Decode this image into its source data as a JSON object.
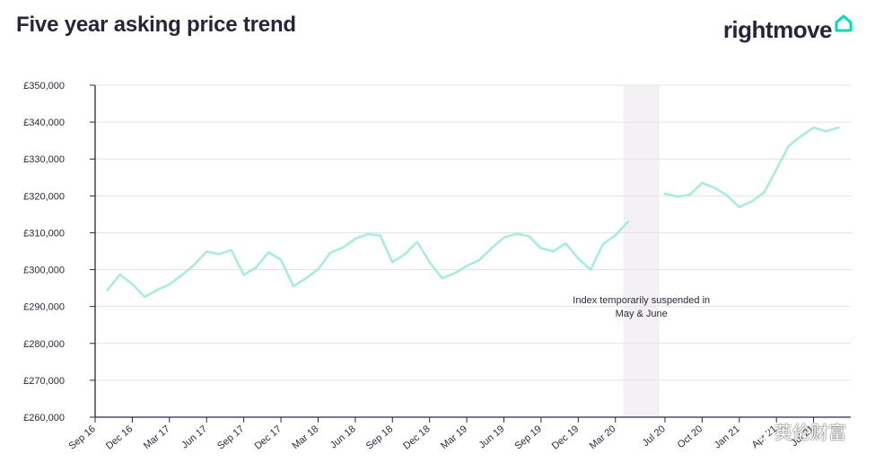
{
  "header": {
    "title": "Five year asking price trend"
  },
  "brand": {
    "name": "rightmove",
    "icon": "house-outline-icon",
    "accent": "#00deb6"
  },
  "watermark": {
    "text": "英伦财富",
    "icon": "wechat-icon"
  },
  "colors": {
    "line": "#a9ecdb",
    "grid": "#e3e3e6",
    "axis": "#2a2a3a",
    "text": "#2a2a3a",
    "shade": "#f3f1f3"
  },
  "chart_data": {
    "type": "line",
    "title": "Five year asking price trend",
    "xlabel": "",
    "ylabel": "",
    "ylim": [
      260000,
      350000
    ],
    "yticks": [
      260000,
      270000,
      280000,
      290000,
      300000,
      310000,
      320000,
      330000,
      340000,
      350000
    ],
    "ytick_labels": [
      "£260,000",
      "£270,000",
      "£280,000",
      "£290,000",
      "£300,000",
      "£310,000",
      "£320,000",
      "£330,000",
      "£340,000",
      "£350,000"
    ],
    "xtick_labels": [
      "Sep 16",
      "Dec 16",
      "Mar 17",
      "Jun 17",
      "Sep 17",
      "Dec 17",
      "Mar 18",
      "Jun 18",
      "Sep 18",
      "Dec 18",
      "Mar 19",
      "Jun 19",
      "Sep 19",
      "Dec 19",
      "Mar 20",
      "Jul 20",
      "Oct 20",
      "Jan 21",
      "Apr 21",
      "Jul 21"
    ],
    "xtick_dates": [
      "2016-09",
      "2016-12",
      "2017-03",
      "2017-06",
      "2017-09",
      "2017-12",
      "2018-03",
      "2018-06",
      "2018-09",
      "2018-12",
      "2019-03",
      "2019-06",
      "2019-09",
      "2019-12",
      "2020-03",
      "2020-07",
      "2020-10",
      "2021-01",
      "2021-04",
      "2021-07"
    ],
    "grid": true,
    "legend": "none",
    "shaded_period": {
      "from": "2020-04",
      "to": "2020-06",
      "label": "Index temporarily suspended in May & June"
    },
    "series": [
      {
        "segments": [
          {
            "x": [
              "2016-10",
              "2016-11",
              "2016-12",
              "2017-01",
              "2017-02",
              "2017-03",
              "2017-04",
              "2017-05",
              "2017-06",
              "2017-07",
              "2017-08",
              "2017-09",
              "2017-10",
              "2017-11",
              "2017-12",
              "2018-01",
              "2018-02",
              "2018-03",
              "2018-04",
              "2018-05",
              "2018-06",
              "2018-07",
              "2018-08",
              "2018-09",
              "2018-10",
              "2018-11",
              "2018-12",
              "2019-01",
              "2019-02",
              "2019-03",
              "2019-04",
              "2019-05",
              "2019-06",
              "2019-07",
              "2019-08",
              "2019-09",
              "2019-10",
              "2019-11",
              "2019-12",
              "2020-01",
              "2020-02",
              "2020-03",
              "2020-04"
            ],
            "y": [
              294500,
              298700,
              296100,
              292600,
              294500,
              296000,
              298500,
              301300,
              304900,
              304200,
              305300,
              298600,
              300600,
              304700,
              302700,
              295500,
              297600,
              300100,
              304600,
              306000,
              308400,
              309600,
              309300,
              302000,
              304200,
              307500,
              302000,
              297700,
              299000,
              301000,
              302600,
              305800,
              308700,
              309700,
              309100,
              305800,
              305000,
              307100,
              303000,
              300000,
              306900,
              309300,
              312900
            ]
          },
          {
            "x": [
              "2020-07",
              "2020-08",
              "2020-09",
              "2020-10",
              "2020-11",
              "2020-12",
              "2021-01",
              "2021-02",
              "2021-03",
              "2021-04",
              "2021-05",
              "2021-06",
              "2021-07",
              "2021-08",
              "2021-09"
            ],
            "y": [
              320600,
              319800,
              320300,
              323500,
              322200,
              320100,
              317000,
              318500,
              320900,
              327200,
              333600,
              336200,
              338500,
              337500,
              338500
            ]
          }
        ]
      }
    ]
  }
}
